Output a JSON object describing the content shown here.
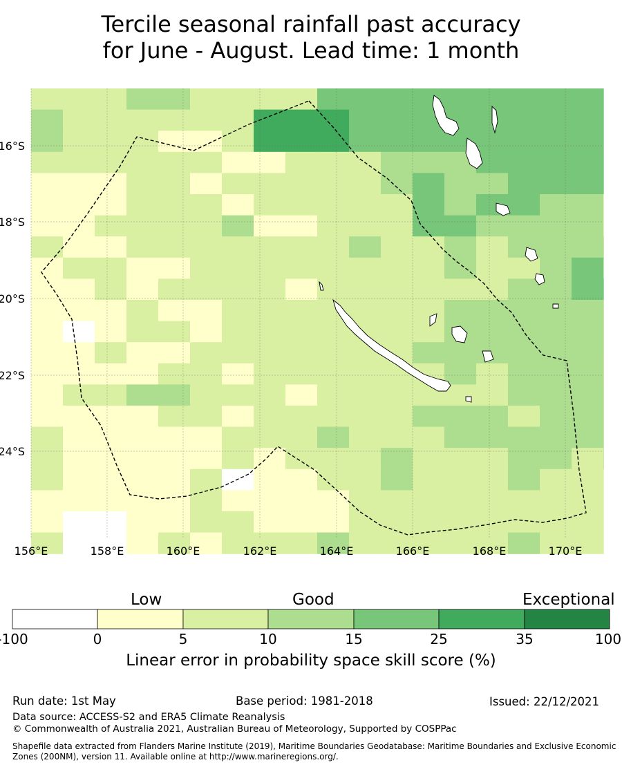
{
  "title_line1": "Tercile seasonal rainfall past accuracy",
  "title_line2": "for June - August. Lead time: 1 month",
  "map": {
    "lon_labels": [
      "156°E",
      "158°E",
      "160°E",
      "162°E",
      "164°E",
      "166°E",
      "168°E",
      "170°E"
    ],
    "lat_labels": [
      "16°S",
      "18°S",
      "20°S",
      "22°S",
      "24°S"
    ],
    "gridlines": true,
    "overlays": [
      "coastline",
      "maritime-boundary-dashed"
    ],
    "skill_color_levels": [
      "#ffffff",
      "#ffffcc",
      "#d9f0a3",
      "#addd8e",
      "#78c679",
      "#41ab5d",
      "#238443"
    ]
  },
  "colorbar": {
    "categories": [
      "Low",
      "Good",
      "Exceptional"
    ],
    "ticks": [
      "-100",
      "0",
      "5",
      "10",
      "15",
      "25",
      "35",
      "100"
    ],
    "colors": [
      "#ffffff",
      "#ffffcc",
      "#d9f0a3",
      "#addd8e",
      "#78c679",
      "#41ab5d",
      "#238443"
    ],
    "label": "Linear error in probability space skill score (%)"
  },
  "footer": {
    "run_date": "Run date: 1st May",
    "base_period": "Base period: 1981-2018",
    "issued": "Issued: 22/12/2021",
    "data_source": "Data source: ACCESS-S2 and ERA5 Climate Reanalysis",
    "copyright": "© Commonwealth of Australia 2021, Australian Bureau of Meteorology, Supported by COSPPac",
    "shapefile": "Shapefile data extracted from Flanders Marine Institute (2019), Maritime Boundaries Geodatabase: Maritime Boundaries and Exclusive Economic Zones (200NM), version 11. Available online at http://www.marineregions.org/."
  }
}
